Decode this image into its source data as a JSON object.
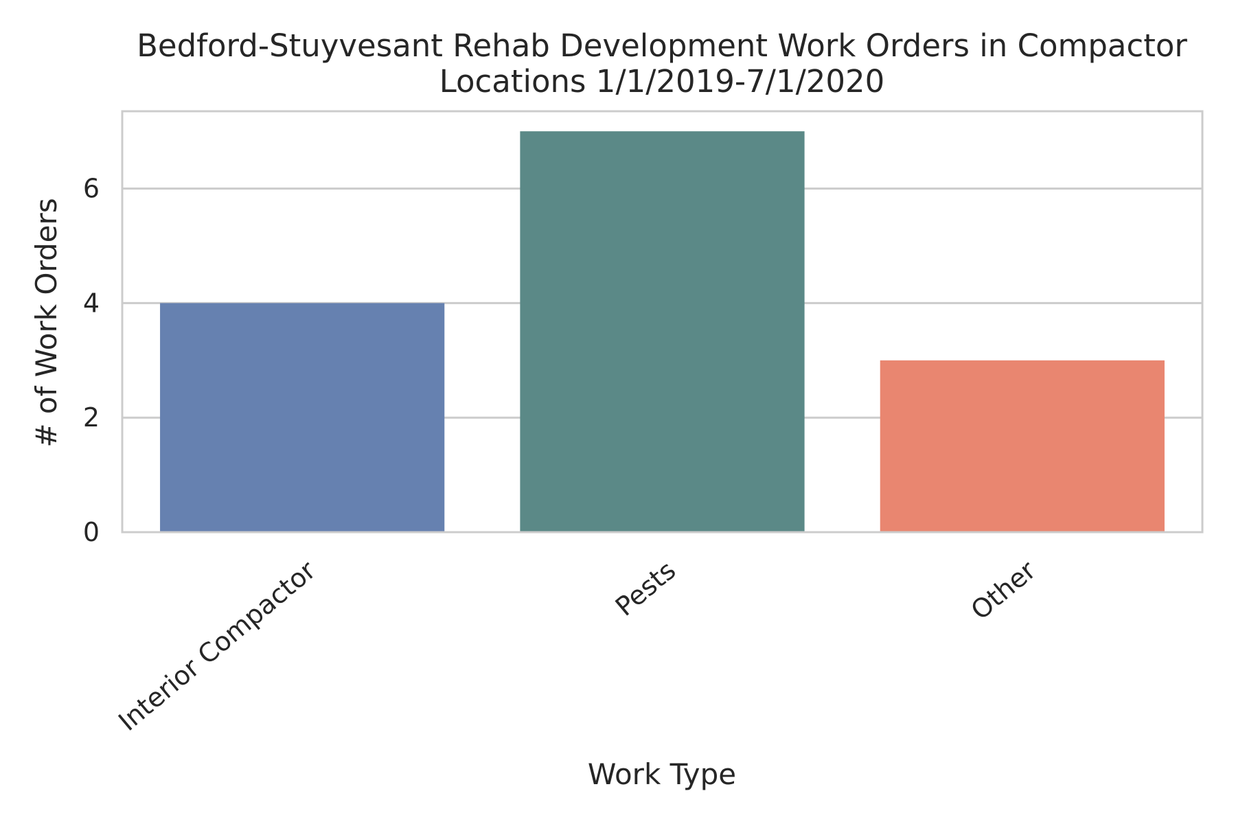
{
  "chart_data": {
    "type": "bar",
    "title_lines": [
      "Bedford-Stuyvesant Rehab Development Work Orders in Compactor",
      "Locations 1/1/2019-7/1/2020"
    ],
    "xlabel": "Work Type",
    "ylabel": "# of Work Orders",
    "categories": [
      "Interior Compactor",
      "Pests",
      "Other"
    ],
    "values": [
      4,
      7,
      3
    ],
    "colors": [
      "#6681b0",
      "#5b8987",
      "#e98670"
    ],
    "ylim": [
      0,
      7.35
    ],
    "yticks": [
      0,
      2,
      4,
      6
    ],
    "ytick_labels": [
      "0",
      "2",
      "4",
      "6"
    ],
    "grid": "horizontal",
    "legend": "none",
    "style": {
      "grid_color": "#cccccc",
      "frame_color": "#cccccc",
      "text_color": "#262626"
    }
  }
}
